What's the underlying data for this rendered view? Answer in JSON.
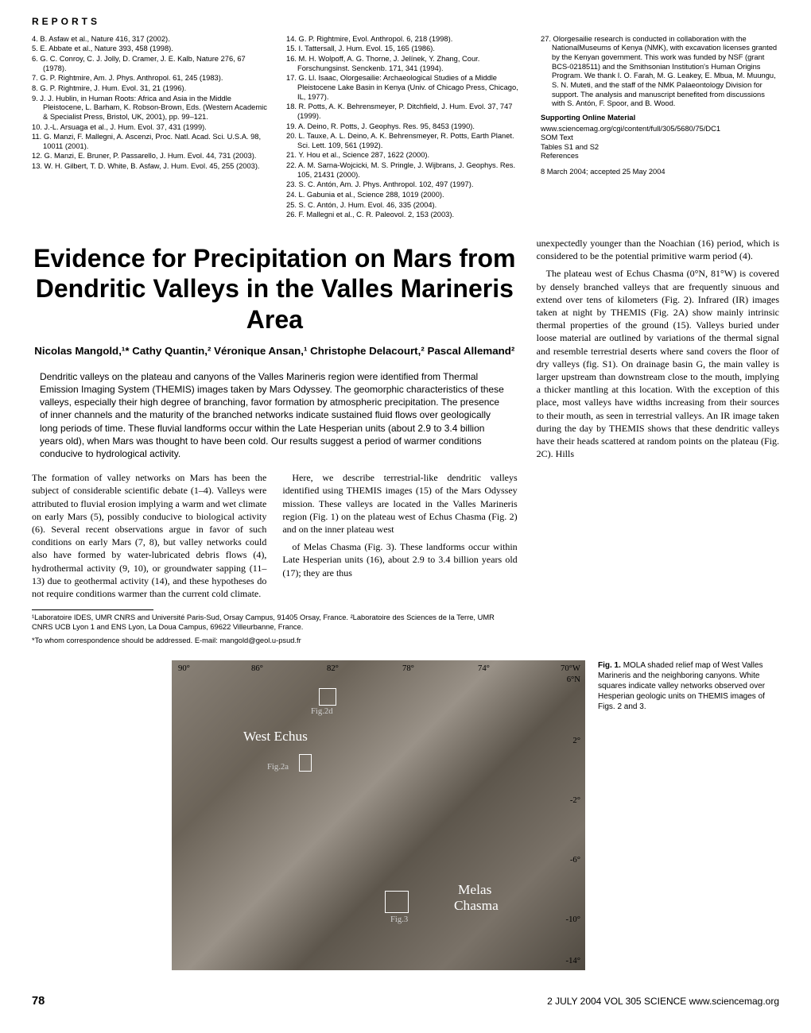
{
  "section_label": "REPORTS",
  "refs_col1": [
    "4. B. Asfaw et al., Nature 416, 317 (2002).",
    "5. E. Abbate et al., Nature 393, 458 (1998).",
    "6. G. C. Conroy, C. J. Jolly, D. Cramer, J. E. Kalb, Nature 276, 67 (1978).",
    "7. G. P. Rightmire, Am. J. Phys. Anthropol. 61, 245 (1983).",
    "8. G. P. Rightmire, J. Hum. Evol. 31, 21 (1996).",
    "9. J. J. Hublin, in Human Roots: Africa and Asia in the Middle Pleistocene, L. Barham, K. Robson-Brown, Eds. (Western Academic & Specialist Press, Bristol, UK, 2001), pp. 99–121.",
    "10. J.-L. Arsuaga et al., J. Hum. Evol. 37, 431 (1999).",
    "11. G. Manzi, F. Mallegni, A. Ascenzi, Proc. Natl. Acad. Sci. U.S.A. 98, 10011 (2001).",
    "12. G. Manzi, E. Bruner, P. Passarello, J. Hum. Evol. 44, 731 (2003).",
    "13. W. H. Gilbert, T. D. White, B. Asfaw, J. Hum. Evol. 45, 255 (2003)."
  ],
  "refs_col2": [
    "14. G. P. Rightmire, Evol. Anthropol. 6, 218 (1998).",
    "15. I. Tattersall, J. Hum. Evol. 15, 165 (1986).",
    "16. M. H. Wolpoff, A. G. Thorne, J. Jelínek, Y. Zhang, Cour. Forschungsinst. Senckenb. 171, 341 (1994).",
    "17. G. Ll. Isaac, Olorgesailie: Archaeological Studies of a Middle Pleistocene Lake Basin in Kenya (Univ. of Chicago Press, Chicago, IL, 1977).",
    "18. R. Potts, A. K. Behrensmeyer, P. Ditchfield, J. Hum. Evol. 37, 747 (1999).",
    "19. A. Deino, R. Potts, J. Geophys. Res. 95, 8453 (1990).",
    "20. L. Tauxe, A. L. Deino, A. K. Behrensmeyer, R. Potts, Earth Planet. Sci. Lett. 109, 561 (1992).",
    "21. Y. Hou et al., Science 287, 1622 (2000).",
    "22. A. M. Sarna-Wojcicki, M. S. Pringle, J. Wijbrans, J. Geophys. Res. 105, 21431 (2000).",
    "23. S. C. Antón, Am. J. Phys. Anthropol. 102, 497 (1997).",
    "24. L. Gabunia et al., Science 288, 1019 (2000).",
    "25. S. C. Antón, J. Hum. Evol. 46, 335 (2004).",
    "26. F. Mallegni et al., C. R. Paleovol. 2, 153 (2003)."
  ],
  "refs_col3_ack": "27. Olorgesailie research is conducted in collaboration with the NationalMuseums of Kenya (NMK), with excavation licenses granted by the Kenyan government. This work was funded by NSF (grant BCS-0218511) and the Smithsonian Institution's Human Origins Program. We thank I. O. Farah, M. G. Leakey, E. Mbua, M. Muungu, S. N. Muteti, and the staff of the NMK Palaeontology Division for support. The analysis and manuscript benefited from discussions with S. Antón, F. Spoor, and B. Wood.",
  "som_heading": "Supporting Online Material",
  "som_lines": [
    "www.sciencemag.org/cgi/content/full/305/5680/75/DC1",
    "SOM Text",
    "Tables S1 and S2",
    "References"
  ],
  "received": "8 March 2004; accepted 25 May 2004",
  "article_title": "Evidence for Precipitation on Mars from Dendritic Valleys in the Valles Marineris Area",
  "authors": "Nicolas Mangold,¹* Cathy Quantin,² Véronique Ansan,¹ Christophe Delacourt,² Pascal Allemand²",
  "abstract": "Dendritic valleys on the plateau and canyons of the Valles Marineris region were identified from Thermal Emission Imaging System (THEMIS) images taken by Mars Odyssey. The geomorphic characteristics of these valleys, especially their high degree of branching, favor formation by atmospheric precipitation. The presence of inner channels and the maturity of the branched networks indicate sustained fluid flows over geologically long periods of time. These fluvial landforms occur within the Late Hesperian units (about 2.9 to 3.4 billion years old), when Mars was thought to have been cold. Our results suggest a period of warmer conditions conducive to hydrological activity.",
  "body_paragraphs": [
    "The formation of valley networks on Mars has been the subject of considerable scientific debate (1–4). Valleys were attributed to fluvial erosion implying a warm and wet climate on early Mars (5), possibly conducive to biological activity (6). Several recent observations argue in favor of such conditions on early Mars (7, 8), but valley networks could also have formed by water-lubricated debris flows (4), hydrothermal activity (9, 10), or groundwater sapping (11–13) due to geothermal activity (14), and these hypotheses do not require conditions warmer than the current cold climate.",
    "Here, we describe terrestrial-like dendritic valleys identified using THEMIS images (15) of the Mars Odyssey mission. These valleys are located in the Valles Marineris region (Fig. 1) on the plateau west of Echus Chasma (Fig. 2) and on the inner plateau west",
    "of Melas Chasma (Fig. 3). These landforms occur within Late Hesperian units (16), about 2.9 to 3.4 billion years old (17); they are thus"
  ],
  "side_paragraphs": [
    "unexpectedly younger than the Noachian (16) period, which is considered to be the potential primitive warm period (4).",
    "The plateau west of Echus Chasma (0°N, 81°W) is covered by densely branched valleys that are frequently sinuous and extend over tens of kilometers (Fig. 2). Infrared (IR) images taken at night by THEMIS (Fig. 2A) show mainly intrinsic thermal properties of the ground (15). Valleys buried under loose material are outlined by variations of the thermal signal and resemble terrestrial deserts where sand covers the floor of dry valleys (fig. S1). On drainage basin G, the main valley is larger upstream than downstream close to the mouth, implying a thicker mantling at this location. With the exception of this place, most valleys have widths increasing from their sources to their mouth, as seen in terrestrial valleys. An IR image taken during the day by THEMIS shows that these dendritic valleys have their heads scattered at random points on the plateau (Fig. 2C). Hills"
  ],
  "affil1": "¹Laboratoire IDES, UMR CNRS and Université Paris-Sud, Orsay Campus, 91405 Orsay, France. ²Laboratoire des Sciences de la Terre, UMR CNRS UCB Lyon 1 and ENS Lyon, La Doua Campus, 69622 Villeurbanne, France.",
  "affil2": "*To whom correspondence should be addressed. E-mail: mangold@geol.u-psud.fr",
  "fig1_caption": "Fig. 1. MOLA shaded relief map of West Valles Marineris and the neighboring canyons. White squares indicate valley networks observed over Hesperian geologic units on THEMIS images of Figs. 2 and 3.",
  "map": {
    "x_ticks": [
      "90°",
      "86°",
      "82°",
      "78°",
      "74°",
      "70°W"
    ],
    "y_ticks": [
      "6°N",
      "2°",
      "-2°",
      "-6°",
      "-10°",
      "-14°"
    ],
    "labels": {
      "west_echus": "West Echus",
      "melas": "Melas",
      "chasma": "Chasma"
    },
    "figrefs": {
      "fig2d": "Fig.2d",
      "fig2a": "Fig.2a",
      "fig3": "Fig.3"
    }
  },
  "footer": {
    "page": "78",
    "citation": "2 JULY 2004  VOL 305  SCIENCE  www.sciencemag.org"
  }
}
